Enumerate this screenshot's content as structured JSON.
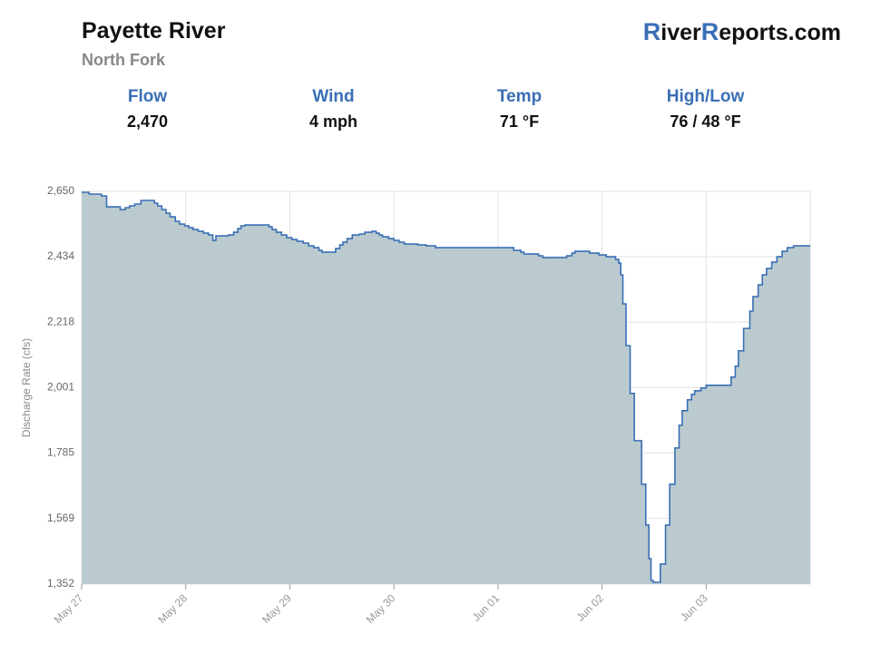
{
  "header": {
    "title": "Payette River",
    "subtitle": "North Fork",
    "brand": [
      "R",
      "iver",
      "R",
      "eports.com"
    ]
  },
  "stats": [
    {
      "label": "Flow",
      "value": "2,470"
    },
    {
      "label": "Wind",
      "value": "4 mph"
    },
    {
      "label": "Temp",
      "value": "71 °F"
    },
    {
      "label": "High/Low",
      "value": "76 / 48 °F"
    }
  ],
  "chart_data": {
    "type": "step-area",
    "y_label": "Discharge Rate (cfs)",
    "line_color": "#3a6fb5",
    "fill_color": "#bacace",
    "grid": true,
    "x": [
      0,
      0.07,
      0.19,
      0.24,
      0.37,
      0.42,
      0.46,
      0.51,
      0.57,
      0.7,
      0.73,
      0.77,
      0.81,
      0.85,
      0.9,
      0.94,
      0.99,
      1.03,
      1.07,
      1.12,
      1.17,
      1.22,
      1.26,
      1.29,
      1.41,
      1.46,
      1.5,
      1.53,
      1.57,
      1.8,
      1.83,
      1.87,
      1.92,
      1.97,
      2.02,
      2.07,
      2.13,
      2.18,
      2.23,
      2.28,
      2.31,
      2.44,
      2.48,
      2.51,
      2.55,
      2.6,
      2.67,
      2.72,
      2.79,
      2.83,
      2.86,
      2.89,
      2.95,
      3.0,
      3.05,
      3.1,
      3.23,
      3.31,
      3.4,
      4.15,
      4.22,
      4.25,
      4.39,
      4.43,
      4.66,
      4.71,
      4.74,
      4.88,
      4.97,
      5.04,
      5.13,
      5.16,
      5.18,
      5.2,
      5.23,
      5.27,
      5.31,
      5.38,
      5.42,
      5.45,
      5.47,
      5.49,
      5.56,
      5.61,
      5.65,
      5.7,
      5.74,
      5.77,
      5.82,
      5.86,
      5.89,
      5.95,
      6.0,
      6.24,
      6.28,
      6.31,
      6.36,
      6.42,
      6.45,
      6.5,
      6.54,
      6.58,
      6.63,
      6.68,
      6.73,
      6.78,
      6.84
    ],
    "values": [
      2647,
      2641,
      2635,
      2599,
      2590,
      2596,
      2602,
      2608,
      2620,
      2611,
      2602,
      2590,
      2578,
      2566,
      2551,
      2542,
      2536,
      2530,
      2524,
      2518,
      2512,
      2506,
      2488,
      2503,
      2506,
      2515,
      2527,
      2536,
      2539,
      2533,
      2524,
      2515,
      2506,
      2497,
      2491,
      2485,
      2479,
      2470,
      2464,
      2455,
      2449,
      2461,
      2473,
      2482,
      2494,
      2506,
      2509,
      2515,
      2518,
      2512,
      2506,
      2500,
      2494,
      2488,
      2482,
      2476,
      2473,
      2470,
      2464,
      2455,
      2449,
      2443,
      2437,
      2431,
      2437,
      2446,
      2452,
      2446,
      2440,
      2434,
      2425,
      2413,
      2374,
      2278,
      2140,
      1982,
      1826,
      1682,
      1547,
      1436,
      1364,
      1358,
      1418,
      1547,
      1682,
      1802,
      1877,
      1925,
      1961,
      1979,
      1991,
      2000,
      2009,
      2036,
      2072,
      2123,
      2197,
      2254,
      2302,
      2341,
      2374,
      2395,
      2416,
      2434,
      2452,
      2464,
      2470
    ],
    "xlim": [
      0,
      7
    ],
    "xticks": [
      {
        "value": 0,
        "label": "May 27"
      },
      {
        "value": 1,
        "label": "May 28"
      },
      {
        "value": 2,
        "label": "May 29"
      },
      {
        "value": 3,
        "label": "May 30"
      },
      {
        "value": 4,
        "label": "Jun 01"
      },
      {
        "value": 5,
        "label": "Jun 02"
      },
      {
        "value": 6,
        "label": "Jun 03"
      }
    ],
    "ylim": [
      1352,
      2650
    ],
    "yticks": [
      {
        "value": 1352,
        "label": "1,352"
      },
      {
        "value": 1569,
        "label": "1,569"
      },
      {
        "value": 1785,
        "label": "1,785"
      },
      {
        "value": 2001,
        "label": "2,001"
      },
      {
        "value": 2218,
        "label": "2,218"
      },
      {
        "value": 2434,
        "label": "2,434"
      },
      {
        "value": 2650,
        "label": "2,650"
      }
    ]
  }
}
